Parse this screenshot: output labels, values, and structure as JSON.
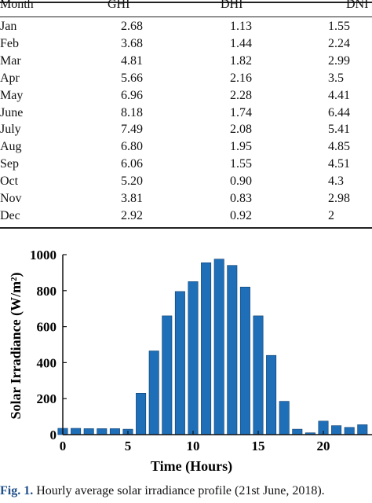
{
  "table": {
    "headers": [
      "Month",
      "GHI",
      "DHI",
      "DNI"
    ],
    "rows": [
      [
        "Jan",
        "2.68",
        "1.13",
        "1.55"
      ],
      [
        "Feb",
        "3.68",
        "1.44",
        "2.24"
      ],
      [
        "Mar",
        "4.81",
        "1.82",
        "2.99"
      ],
      [
        "Apr",
        "5.66",
        "2.16",
        "3.5"
      ],
      [
        "May",
        "6.96",
        "2.28",
        "4.41"
      ],
      [
        "June",
        "8.18",
        "1.74",
        "6.44"
      ],
      [
        "July",
        "7.49",
        "2.08",
        "5.41"
      ],
      [
        "Aug",
        "6.80",
        "1.95",
        "4.85"
      ],
      [
        "Sep",
        "6.06",
        "1.55",
        "4.51"
      ],
      [
        "Oct",
        "5.20",
        "0.90",
        "4.3"
      ],
      [
        "Nov",
        "3.81",
        "0.83",
        "2.98"
      ],
      [
        "Dec",
        "2.92",
        "0.92",
        "2"
      ]
    ]
  },
  "chart_data": {
    "type": "bar",
    "title": "",
    "xlabel": "Time (Hours)",
    "ylabel": "Solar Irradiance (W/m²)",
    "x": [
      0,
      1,
      2,
      3,
      4,
      5,
      6,
      7,
      8,
      9,
      10,
      11,
      12,
      13,
      14,
      15,
      16,
      17,
      18,
      19,
      20,
      21,
      22,
      23
    ],
    "values": [
      35,
      35,
      33,
      33,
      33,
      30,
      230,
      465,
      660,
      795,
      850,
      955,
      975,
      940,
      820,
      660,
      440,
      185,
      30,
      10,
      75,
      50,
      40,
      55
    ],
    "xlim": [
      0,
      23
    ],
    "ylim": [
      0,
      1000
    ],
    "xticks": [
      0,
      5,
      10,
      15,
      20
    ],
    "yticks": [
      0,
      200,
      400,
      600,
      800,
      1000
    ],
    "bar_color": "#1f6fb8",
    "grid": false
  },
  "caption": {
    "label": "Fig. 1.",
    "text": " Hourly average solar irradiance profile (21st June, 2018)."
  }
}
